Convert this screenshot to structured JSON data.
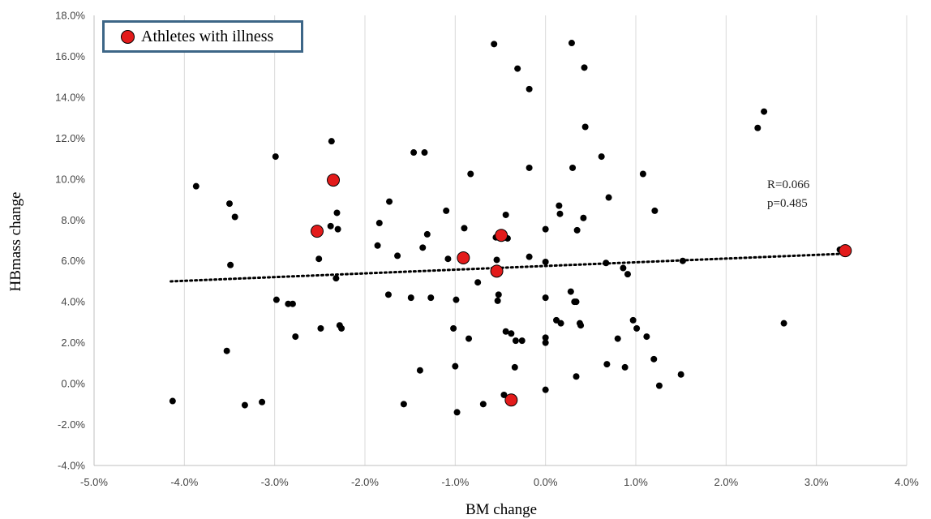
{
  "chart_data": {
    "type": "scatter",
    "xlabel": "BM change",
    "ylabel": "HBmass change",
    "xlim": [
      -5.0,
      4.0
    ],
    "ylim": [
      -4.0,
      18.0
    ],
    "xticks": [
      "-5.0%",
      "-4.0%",
      "-3.0%",
      "-2.0%",
      "-1.0%",
      "0.0%",
      "1.0%",
      "2.0%",
      "3.0%",
      "4.0%"
    ],
    "yticks": [
      "-4.0%",
      "-2.0%",
      "0.0%",
      "2.0%",
      "4.0%",
      "6.0%",
      "8.0%",
      "10.0%",
      "12.0%",
      "14.0%",
      "16.0%",
      "18.0%"
    ],
    "grid": "vertical",
    "legend": {
      "placement": "top-left",
      "label": "Athletes with illness"
    },
    "annotation": {
      "r": "R=0.066",
      "p": "p=0.485"
    },
    "trendline": {
      "x": [
        -4.15,
        3.3
      ],
      "y": [
        5.0,
        6.35
      ],
      "style": "dotted"
    },
    "series": [
      {
        "marker": "black-dot",
        "points": [
          [
            -4.13,
            -0.85
          ],
          [
            -3.87,
            9.65
          ],
          [
            -3.53,
            1.6
          ],
          [
            -3.5,
            8.8
          ],
          [
            -3.49,
            5.8
          ],
          [
            -3.44,
            8.15
          ],
          [
            -3.33,
            -1.05
          ],
          [
            -3.14,
            -0.9
          ],
          [
            -2.99,
            11.1
          ],
          [
            -2.98,
            4.1
          ],
          [
            -2.85,
            3.9
          ],
          [
            -2.8,
            3.9
          ],
          [
            -2.77,
            2.3
          ],
          [
            -2.51,
            6.1
          ],
          [
            -2.49,
            2.7
          ],
          [
            -2.38,
            7.7
          ],
          [
            -2.37,
            11.85
          ],
          [
            -2.32,
            5.15
          ],
          [
            -2.31,
            8.35
          ],
          [
            -2.3,
            7.55
          ],
          [
            -2.28,
            2.85
          ],
          [
            -2.26,
            2.7
          ],
          [
            -1.86,
            6.75
          ],
          [
            -1.84,
            7.85
          ],
          [
            -1.74,
            4.35
          ],
          [
            -1.73,
            8.9
          ],
          [
            -1.64,
            6.25
          ],
          [
            -1.57,
            -1.0
          ],
          [
            -1.49,
            4.2
          ],
          [
            -1.46,
            11.3
          ],
          [
            -1.39,
            0.65
          ],
          [
            -1.36,
            6.65
          ],
          [
            -1.34,
            11.3
          ],
          [
            -1.31,
            7.3
          ],
          [
            -1.27,
            4.2
          ],
          [
            -1.1,
            8.45
          ],
          [
            -1.08,
            6.1
          ],
          [
            -1.02,
            2.7
          ],
          [
            -1.0,
            0.85
          ],
          [
            -0.99,
            4.1
          ],
          [
            -0.98,
            -1.4
          ],
          [
            -0.9,
            7.6
          ],
          [
            -0.85,
            2.2
          ],
          [
            -0.83,
            10.25
          ],
          [
            -0.75,
            4.95
          ],
          [
            -0.69,
            -1.0
          ],
          [
            -0.57,
            16.6
          ],
          [
            -0.55,
            7.15
          ],
          [
            -0.54,
            6.05
          ],
          [
            -0.53,
            4.05
          ],
          [
            -0.52,
            4.35
          ],
          [
            -0.46,
            -0.55
          ],
          [
            -0.44,
            8.25
          ],
          [
            -0.44,
            2.55
          ],
          [
            -0.42,
            7.1
          ],
          [
            -0.38,
            2.45
          ],
          [
            -0.34,
            0.8
          ],
          [
            -0.33,
            2.1
          ],
          [
            -0.31,
            15.4
          ],
          [
            -0.26,
            2.1
          ],
          [
            -0.18,
            14.4
          ],
          [
            -0.18,
            10.55
          ],
          [
            -0.18,
            6.2
          ],
          [
            0.0,
            7.55
          ],
          [
            0.0,
            5.95
          ],
          [
            0.0,
            4.2
          ],
          [
            0.0,
            2.25
          ],
          [
            0.0,
            2.0
          ],
          [
            0.0,
            -0.3
          ],
          [
            0.12,
            3.1
          ],
          [
            0.15,
            8.7
          ],
          [
            0.16,
            8.3
          ],
          [
            0.17,
            2.95
          ],
          [
            0.28,
            4.5
          ],
          [
            0.29,
            16.65
          ],
          [
            0.3,
            10.55
          ],
          [
            0.32,
            4.0
          ],
          [
            0.34,
            4.0
          ],
          [
            0.34,
            0.35
          ],
          [
            0.35,
            7.5
          ],
          [
            0.38,
            2.95
          ],
          [
            0.39,
            2.85
          ],
          [
            0.42,
            8.1
          ],
          [
            0.43,
            15.45
          ],
          [
            0.44,
            12.55
          ],
          [
            0.62,
            11.1
          ],
          [
            0.67,
            5.9
          ],
          [
            0.68,
            0.95
          ],
          [
            0.7,
            9.1
          ],
          [
            0.8,
            2.2
          ],
          [
            0.86,
            5.65
          ],
          [
            0.88,
            0.8
          ],
          [
            0.91,
            5.35
          ],
          [
            0.97,
            3.1
          ],
          [
            1.01,
            2.7
          ],
          [
            1.08,
            10.25
          ],
          [
            1.12,
            2.3
          ],
          [
            1.2,
            1.2
          ],
          [
            1.21,
            8.45
          ],
          [
            1.26,
            -0.1
          ],
          [
            1.5,
            0.45
          ],
          [
            1.52,
            6.0
          ],
          [
            2.35,
            12.5
          ],
          [
            2.42,
            13.3
          ],
          [
            2.64,
            2.95
          ],
          [
            3.26,
            6.55
          ]
        ]
      },
      {
        "name": "Athletes with illness",
        "marker": "red-dot",
        "points": [
          [
            -2.53,
            7.45
          ],
          [
            -2.35,
            9.95
          ],
          [
            -0.91,
            6.15
          ],
          [
            -0.54,
            5.5
          ],
          [
            -0.49,
            7.25
          ],
          [
            -0.38,
            -0.8
          ],
          [
            3.32,
            6.5
          ]
        ]
      }
    ]
  },
  "legend_label": "Athletes with illness",
  "stat_r": "R=0.066",
  "stat_p": "p=0.485",
  "x_title": "BM change",
  "y_title": "HBmass change"
}
